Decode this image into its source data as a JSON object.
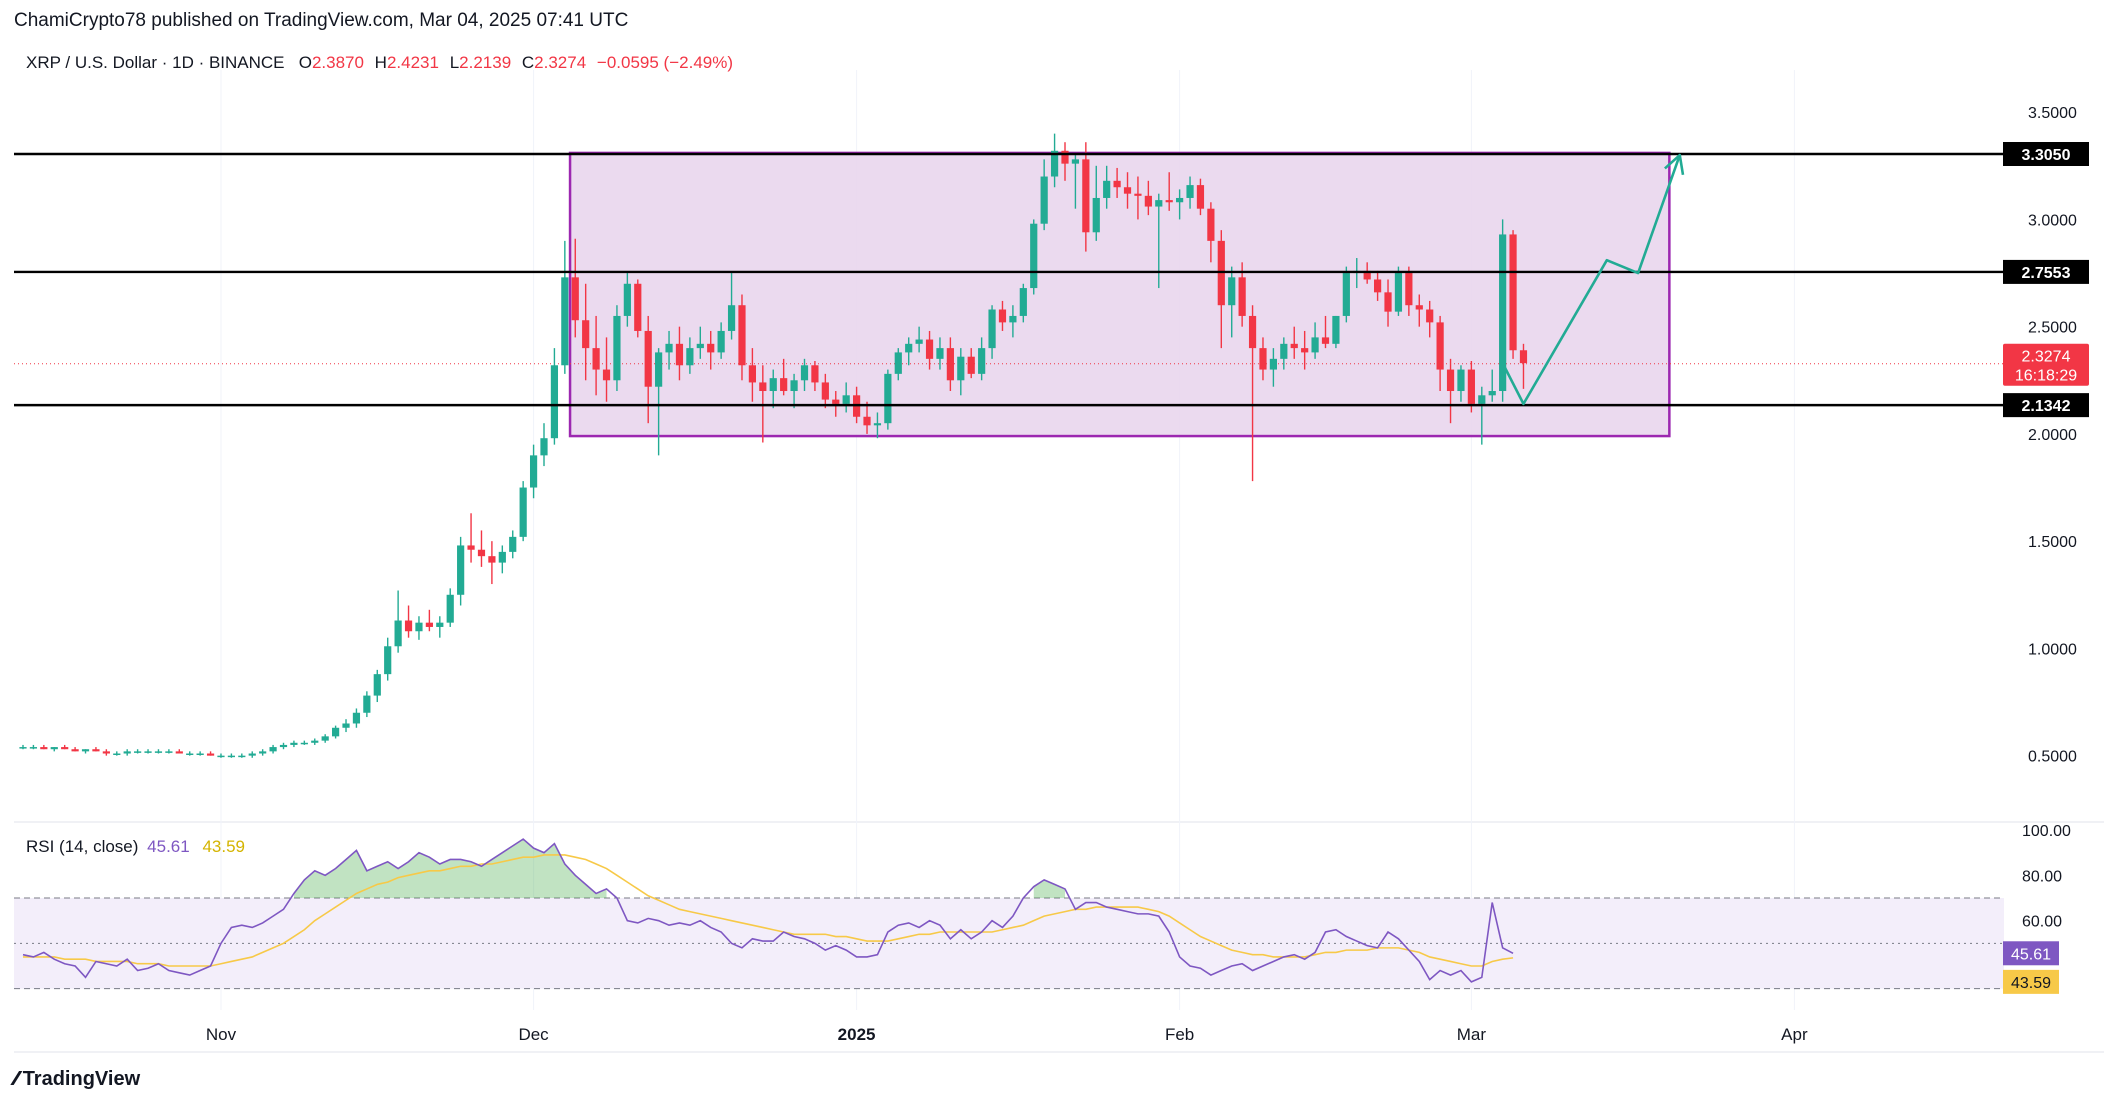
{
  "header": {
    "published_by": "ChamiCrypto78 published on TradingView.com, Mar 04, 2025 07:41 UTC"
  },
  "legend": {
    "symbol": "XRP / U.S. Dollar · 1D · BINANCE",
    "o_label": "O",
    "o_value": "2.3870",
    "h_label": "H",
    "h_value": "2.4231",
    "l_label": "L",
    "l_value": "2.2139",
    "c_label": "C",
    "c_value": "2.3274",
    "change": "−0.0595 (−2.49%)"
  },
  "rsi_legend": {
    "label": "RSI (14, close)",
    "rsi_value": "45.61",
    "ma_value": "43.59"
  },
  "footer": {
    "brand": "TradingView",
    "logo_icon": "tradingview-logo-icon"
  },
  "colors": {
    "up": "#22ab94",
    "down": "#f23645",
    "box_fill": "#e8d3ec",
    "box_border": "#9c27b0",
    "arrow": "#22ab94",
    "rsi_line": "#7e57c2",
    "rsi_ma": "#f7c948",
    "rsi_band": "#f3eefa",
    "level_line": "#000000"
  },
  "chart_data": [
    {
      "type": "candlestick",
      "title": "XRP / U.S. Dollar · 1D · BINANCE",
      "x_ticks": [
        "Nov",
        "Dec",
        "2025",
        "Feb",
        "Mar",
        "Apr"
      ],
      "y_ticks": [
        "3.5000",
        "3.0000",
        "2.5000",
        "2.0000",
        "1.5000",
        "1.0000",
        "0.5000"
      ],
      "ylim": [
        0.2,
        3.65
      ],
      "horizontal_levels": [
        {
          "label": "3.3050",
          "value": 3.305
        },
        {
          "label": "2.7553",
          "value": 2.7553
        },
        {
          "label": "2.1342",
          "value": 2.1342
        }
      ],
      "current_price": {
        "label": "2.3274",
        "value": 2.3274,
        "countdown": "16:18:29"
      },
      "range_box": {
        "x_start": "2024-12-05",
        "x_end": "2025-03-20",
        "y_low": 1.99,
        "y_high": 3.31
      },
      "projection_path": [
        {
          "x": "2025-03-04",
          "y": 2.33
        },
        {
          "x": "2025-03-06",
          "y": 2.14
        },
        {
          "x": "2025-03-14",
          "y": 2.81
        },
        {
          "x": "2025-03-17",
          "y": 2.75
        },
        {
          "x": "2025-03-21",
          "y": 3.3
        }
      ],
      "x_start": "2024-10-13",
      "ohlc": [
        [
          0.54,
          0.55,
          0.53,
          0.54
        ],
        [
          0.54,
          0.55,
          0.53,
          0.54
        ],
        [
          0.54,
          0.55,
          0.53,
          0.53
        ],
        [
          0.53,
          0.54,
          0.52,
          0.54
        ],
        [
          0.54,
          0.55,
          0.53,
          0.53
        ],
        [
          0.53,
          0.54,
          0.52,
          0.52
        ],
        [
          0.52,
          0.53,
          0.51,
          0.53
        ],
        [
          0.53,
          0.54,
          0.52,
          0.52
        ],
        [
          0.52,
          0.53,
          0.5,
          0.51
        ],
        [
          0.51,
          0.52,
          0.5,
          0.51
        ],
        [
          0.51,
          0.53,
          0.5,
          0.52
        ],
        [
          0.52,
          0.53,
          0.51,
          0.52
        ],
        [
          0.52,
          0.53,
          0.51,
          0.52
        ],
        [
          0.52,
          0.53,
          0.51,
          0.52
        ],
        [
          0.52,
          0.53,
          0.51,
          0.52
        ],
        [
          0.52,
          0.53,
          0.51,
          0.51
        ],
        [
          0.51,
          0.52,
          0.5,
          0.51
        ],
        [
          0.51,
          0.52,
          0.5,
          0.51
        ],
        [
          0.51,
          0.52,
          0.5,
          0.5
        ],
        [
          0.5,
          0.51,
          0.49,
          0.5
        ],
        [
          0.5,
          0.51,
          0.49,
          0.5
        ],
        [
          0.5,
          0.51,
          0.49,
          0.5
        ],
        [
          0.5,
          0.52,
          0.49,
          0.51
        ],
        [
          0.51,
          0.53,
          0.5,
          0.52
        ],
        [
          0.52,
          0.55,
          0.51,
          0.54
        ],
        [
          0.54,
          0.56,
          0.53,
          0.55
        ],
        [
          0.55,
          0.57,
          0.54,
          0.56
        ],
        [
          0.56,
          0.57,
          0.55,
          0.56
        ],
        [
          0.56,
          0.58,
          0.55,
          0.57
        ],
        [
          0.57,
          0.6,
          0.56,
          0.59
        ],
        [
          0.59,
          0.64,
          0.58,
          0.63
        ],
        [
          0.63,
          0.67,
          0.61,
          0.65
        ],
        [
          0.65,
          0.72,
          0.63,
          0.7
        ],
        [
          0.7,
          0.8,
          0.68,
          0.78
        ],
        [
          0.78,
          0.9,
          0.75,
          0.88
        ],
        [
          0.88,
          1.05,
          0.85,
          1.01
        ],
        [
          1.01,
          1.27,
          0.98,
          1.13
        ],
        [
          1.13,
          1.2,
          1.05,
          1.08
        ],
        [
          1.08,
          1.15,
          1.04,
          1.12
        ],
        [
          1.12,
          1.18,
          1.08,
          1.1
        ],
        [
          1.1,
          1.15,
          1.05,
          1.12
        ],
        [
          1.12,
          1.28,
          1.1,
          1.25
        ],
        [
          1.25,
          1.52,
          1.2,
          1.48
        ],
        [
          1.48,
          1.63,
          1.4,
          1.46
        ],
        [
          1.46,
          1.55,
          1.38,
          1.43
        ],
        [
          1.43,
          1.5,
          1.3,
          1.4
        ],
        [
          1.4,
          1.48,
          1.35,
          1.45
        ],
        [
          1.45,
          1.55,
          1.42,
          1.52
        ],
        [
          1.52,
          1.78,
          1.5,
          1.75
        ],
        [
          1.75,
          1.95,
          1.7,
          1.9
        ],
        [
          1.9,
          2.05,
          1.85,
          1.98
        ],
        [
          1.98,
          2.4,
          1.95,
          2.32
        ],
        [
          2.32,
          2.9,
          2.28,
          2.73
        ],
        [
          2.73,
          2.91,
          2.45,
          2.53
        ],
        [
          2.53,
          2.7,
          2.25,
          2.4
        ],
        [
          2.4,
          2.55,
          2.18,
          2.3
        ],
        [
          2.3,
          2.45,
          2.15,
          2.25
        ],
        [
          2.25,
          2.6,
          2.2,
          2.55
        ],
        [
          2.55,
          2.75,
          2.5,
          2.7
        ],
        [
          2.7,
          2.72,
          2.45,
          2.48
        ],
        [
          2.48,
          2.55,
          2.05,
          2.22
        ],
        [
          2.22,
          2.4,
          1.9,
          2.38
        ],
        [
          2.38,
          2.48,
          2.3,
          2.42
        ],
        [
          2.42,
          2.5,
          2.25,
          2.32
        ],
        [
          2.32,
          2.45,
          2.28,
          2.4
        ],
        [
          2.4,
          2.5,
          2.35,
          2.42
        ],
        [
          2.42,
          2.48,
          2.3,
          2.38
        ],
        [
          2.38,
          2.52,
          2.35,
          2.48
        ],
        [
          2.48,
          2.75,
          2.44,
          2.6
        ],
        [
          2.6,
          2.65,
          2.25,
          2.32
        ],
        [
          2.32,
          2.4,
          2.15,
          2.24
        ],
        [
          2.24,
          2.32,
          1.96,
          2.2
        ],
        [
          2.2,
          2.3,
          2.12,
          2.26
        ],
        [
          2.26,
          2.35,
          2.18,
          2.2
        ],
        [
          2.2,
          2.28,
          2.12,
          2.25
        ],
        [
          2.25,
          2.35,
          2.2,
          2.32
        ],
        [
          2.32,
          2.34,
          2.2,
          2.24
        ],
        [
          2.24,
          2.28,
          2.12,
          2.16
        ],
        [
          2.16,
          2.2,
          2.08,
          2.14
        ],
        [
          2.14,
          2.24,
          2.1,
          2.18
        ],
        [
          2.18,
          2.22,
          2.05,
          2.08
        ],
        [
          2.08,
          2.15,
          2.0,
          2.04
        ],
        [
          2.04,
          2.1,
          1.98,
          2.05
        ],
        [
          2.05,
          2.3,
          2.02,
          2.28
        ],
        [
          2.28,
          2.4,
          2.25,
          2.38
        ],
        [
          2.38,
          2.45,
          2.32,
          2.42
        ],
        [
          2.42,
          2.5,
          2.38,
          2.44
        ],
        [
          2.44,
          2.48,
          2.3,
          2.35
        ],
        [
          2.35,
          2.45,
          2.3,
          2.4
        ],
        [
          2.4,
          2.45,
          2.2,
          2.25
        ],
        [
          2.25,
          2.4,
          2.18,
          2.36
        ],
        [
          2.36,
          2.4,
          2.26,
          2.28
        ],
        [
          2.28,
          2.45,
          2.25,
          2.4
        ],
        [
          2.4,
          2.6,
          2.35,
          2.58
        ],
        [
          2.58,
          2.62,
          2.48,
          2.52
        ],
        [
          2.52,
          2.6,
          2.45,
          2.55
        ],
        [
          2.55,
          2.7,
          2.52,
          2.68
        ],
        [
          2.68,
          3.0,
          2.65,
          2.98
        ],
        [
          2.98,
          3.28,
          2.95,
          3.2
        ],
        [
          3.2,
          3.4,
          3.15,
          3.32
        ],
        [
          3.32,
          3.36,
          3.18,
          3.26
        ],
        [
          3.26,
          3.3,
          3.05,
          3.28
        ],
        [
          3.28,
          3.36,
          2.85,
          2.94
        ],
        [
          2.94,
          3.25,
          2.9,
          3.1
        ],
        [
          3.1,
          3.25,
          3.05,
          3.18
        ],
        [
          3.18,
          3.24,
          3.1,
          3.15
        ],
        [
          3.15,
          3.22,
          3.05,
          3.12
        ],
        [
          3.12,
          3.2,
          3.0,
          3.11
        ],
        [
          3.11,
          3.18,
          3.02,
          3.06
        ],
        [
          3.06,
          3.12,
          2.68,
          3.09
        ],
        [
          3.09,
          3.22,
          3.04,
          3.08
        ],
        [
          3.08,
          3.14,
          3.0,
          3.1
        ],
        [
          3.1,
          3.2,
          3.05,
          3.16
        ],
        [
          3.16,
          3.19,
          3.02,
          3.05
        ],
        [
          3.05,
          3.08,
          2.8,
          2.9
        ],
        [
          2.9,
          2.95,
          2.4,
          2.6
        ],
        [
          2.6,
          2.78,
          2.45,
          2.73
        ],
        [
          2.73,
          2.8,
          2.5,
          2.55
        ],
        [
          2.55,
          2.6,
          1.78,
          2.4
        ],
        [
          2.4,
          2.45,
          2.25,
          2.3
        ],
        [
          2.3,
          2.4,
          2.22,
          2.35
        ],
        [
          2.35,
          2.45,
          2.3,
          2.42
        ],
        [
          2.42,
          2.5,
          2.35,
          2.4
        ],
        [
          2.4,
          2.48,
          2.3,
          2.38
        ],
        [
          2.38,
          2.52,
          2.35,
          2.45
        ],
        [
          2.45,
          2.55,
          2.4,
          2.42
        ],
        [
          2.42,
          2.55,
          2.4,
          2.55
        ],
        [
          2.55,
          2.78,
          2.52,
          2.75
        ],
        [
          2.75,
          2.82,
          2.68,
          2.76
        ],
        [
          2.76,
          2.8,
          2.7,
          2.72
        ],
        [
          2.72,
          2.76,
          2.62,
          2.66
        ],
        [
          2.66,
          2.72,
          2.5,
          2.57
        ],
        [
          2.57,
          2.78,
          2.55,
          2.75
        ],
        [
          2.75,
          2.78,
          2.55,
          2.6
        ],
        [
          2.6,
          2.65,
          2.5,
          2.58
        ],
        [
          2.58,
          2.62,
          2.45,
          2.52
        ],
        [
          2.52,
          2.55,
          2.2,
          2.3
        ],
        [
          2.3,
          2.35,
          2.05,
          2.2
        ],
        [
          2.2,
          2.32,
          2.15,
          2.3
        ],
        [
          2.3,
          2.34,
          2.1,
          2.14
        ],
        [
          2.14,
          2.22,
          1.95,
          2.18
        ],
        [
          2.18,
          2.3,
          2.15,
          2.2
        ],
        [
          2.2,
          3.0,
          2.15,
          2.93
        ],
        [
          2.93,
          2.95,
          2.35,
          2.39
        ],
        [
          2.39,
          2.42,
          2.21,
          2.33
        ]
      ]
    },
    {
      "type": "line",
      "title": "RSI (14, close)",
      "y_ticks": [
        "100.00",
        "80.00",
        "60.00"
      ],
      "ylim": [
        25,
        100
      ],
      "bands": [
        70,
        50,
        30
      ],
      "current_labels": {
        "rsi": "45.61",
        "ma": "43.59"
      },
      "series": [
        {
          "name": "RSI",
          "values": [
            45,
            44,
            46,
            43,
            41,
            40,
            35,
            42,
            41,
            40,
            43,
            38,
            39,
            41,
            38,
            37,
            36,
            38,
            40,
            50,
            57,
            58,
            57,
            59,
            62,
            65,
            72,
            78,
            82,
            80,
            83,
            87,
            91,
            82,
            84,
            86,
            83,
            86,
            90,
            88,
            85,
            87,
            87,
            86,
            84,
            87,
            90,
            93,
            96,
            92,
            90,
            94,
            85,
            80,
            76,
            72,
            74,
            70,
            60,
            59,
            61,
            60,
            58,
            59,
            58,
            60,
            57,
            55,
            50,
            48,
            52,
            51,
            51,
            55,
            53,
            52,
            50,
            47,
            49,
            47,
            44,
            44,
            45,
            55,
            58,
            59,
            57,
            60,
            58,
            52,
            56,
            52,
            55,
            60,
            57,
            62,
            70,
            75,
            78,
            76,
            74,
            65,
            68,
            68,
            66,
            65,
            64,
            63,
            63,
            62,
            55,
            44,
            40,
            39,
            36,
            38,
            40,
            41,
            38,
            40,
            42,
            44,
            45,
            43,
            46,
            55,
            56,
            53,
            51,
            49,
            48,
            55,
            52,
            47,
            42,
            34,
            38,
            36,
            38,
            33,
            35,
            68,
            48,
            45.61
          ]
        },
        {
          "name": "RSI-based MA",
          "values": [
            44,
            44,
            44,
            44,
            43,
            43,
            43,
            42,
            42,
            42,
            42,
            41,
            41,
            41,
            40,
            40,
            40,
            40,
            40,
            41,
            42,
            43,
            44,
            46,
            48,
            50,
            53,
            56,
            60,
            63,
            66,
            69,
            72,
            74,
            76,
            77,
            79,
            80,
            81,
            82,
            82,
            83,
            84,
            84,
            85,
            85,
            86,
            87,
            88,
            88,
            89,
            89,
            89,
            88,
            87,
            85,
            83,
            80,
            77,
            74,
            71,
            69,
            67,
            65,
            64,
            63,
            62,
            61,
            60,
            59,
            58,
            57,
            56,
            55,
            54,
            54,
            54,
            54,
            53,
            53,
            52,
            51,
            51,
            51,
            52,
            53,
            54,
            54,
            55,
            55,
            55,
            55,
            55,
            55,
            56,
            57,
            58,
            60,
            62,
            63,
            64,
            65,
            65,
            66,
            66,
            66,
            66,
            66,
            65,
            64,
            62,
            59,
            56,
            53,
            51,
            49,
            47,
            46,
            45,
            45,
            44,
            44,
            44,
            44,
            45,
            46,
            46,
            47,
            47,
            47,
            48,
            48,
            48,
            47,
            46,
            44,
            43,
            42,
            41,
            40,
            40,
            42,
            43,
            43.59
          ]
        }
      ]
    }
  ]
}
